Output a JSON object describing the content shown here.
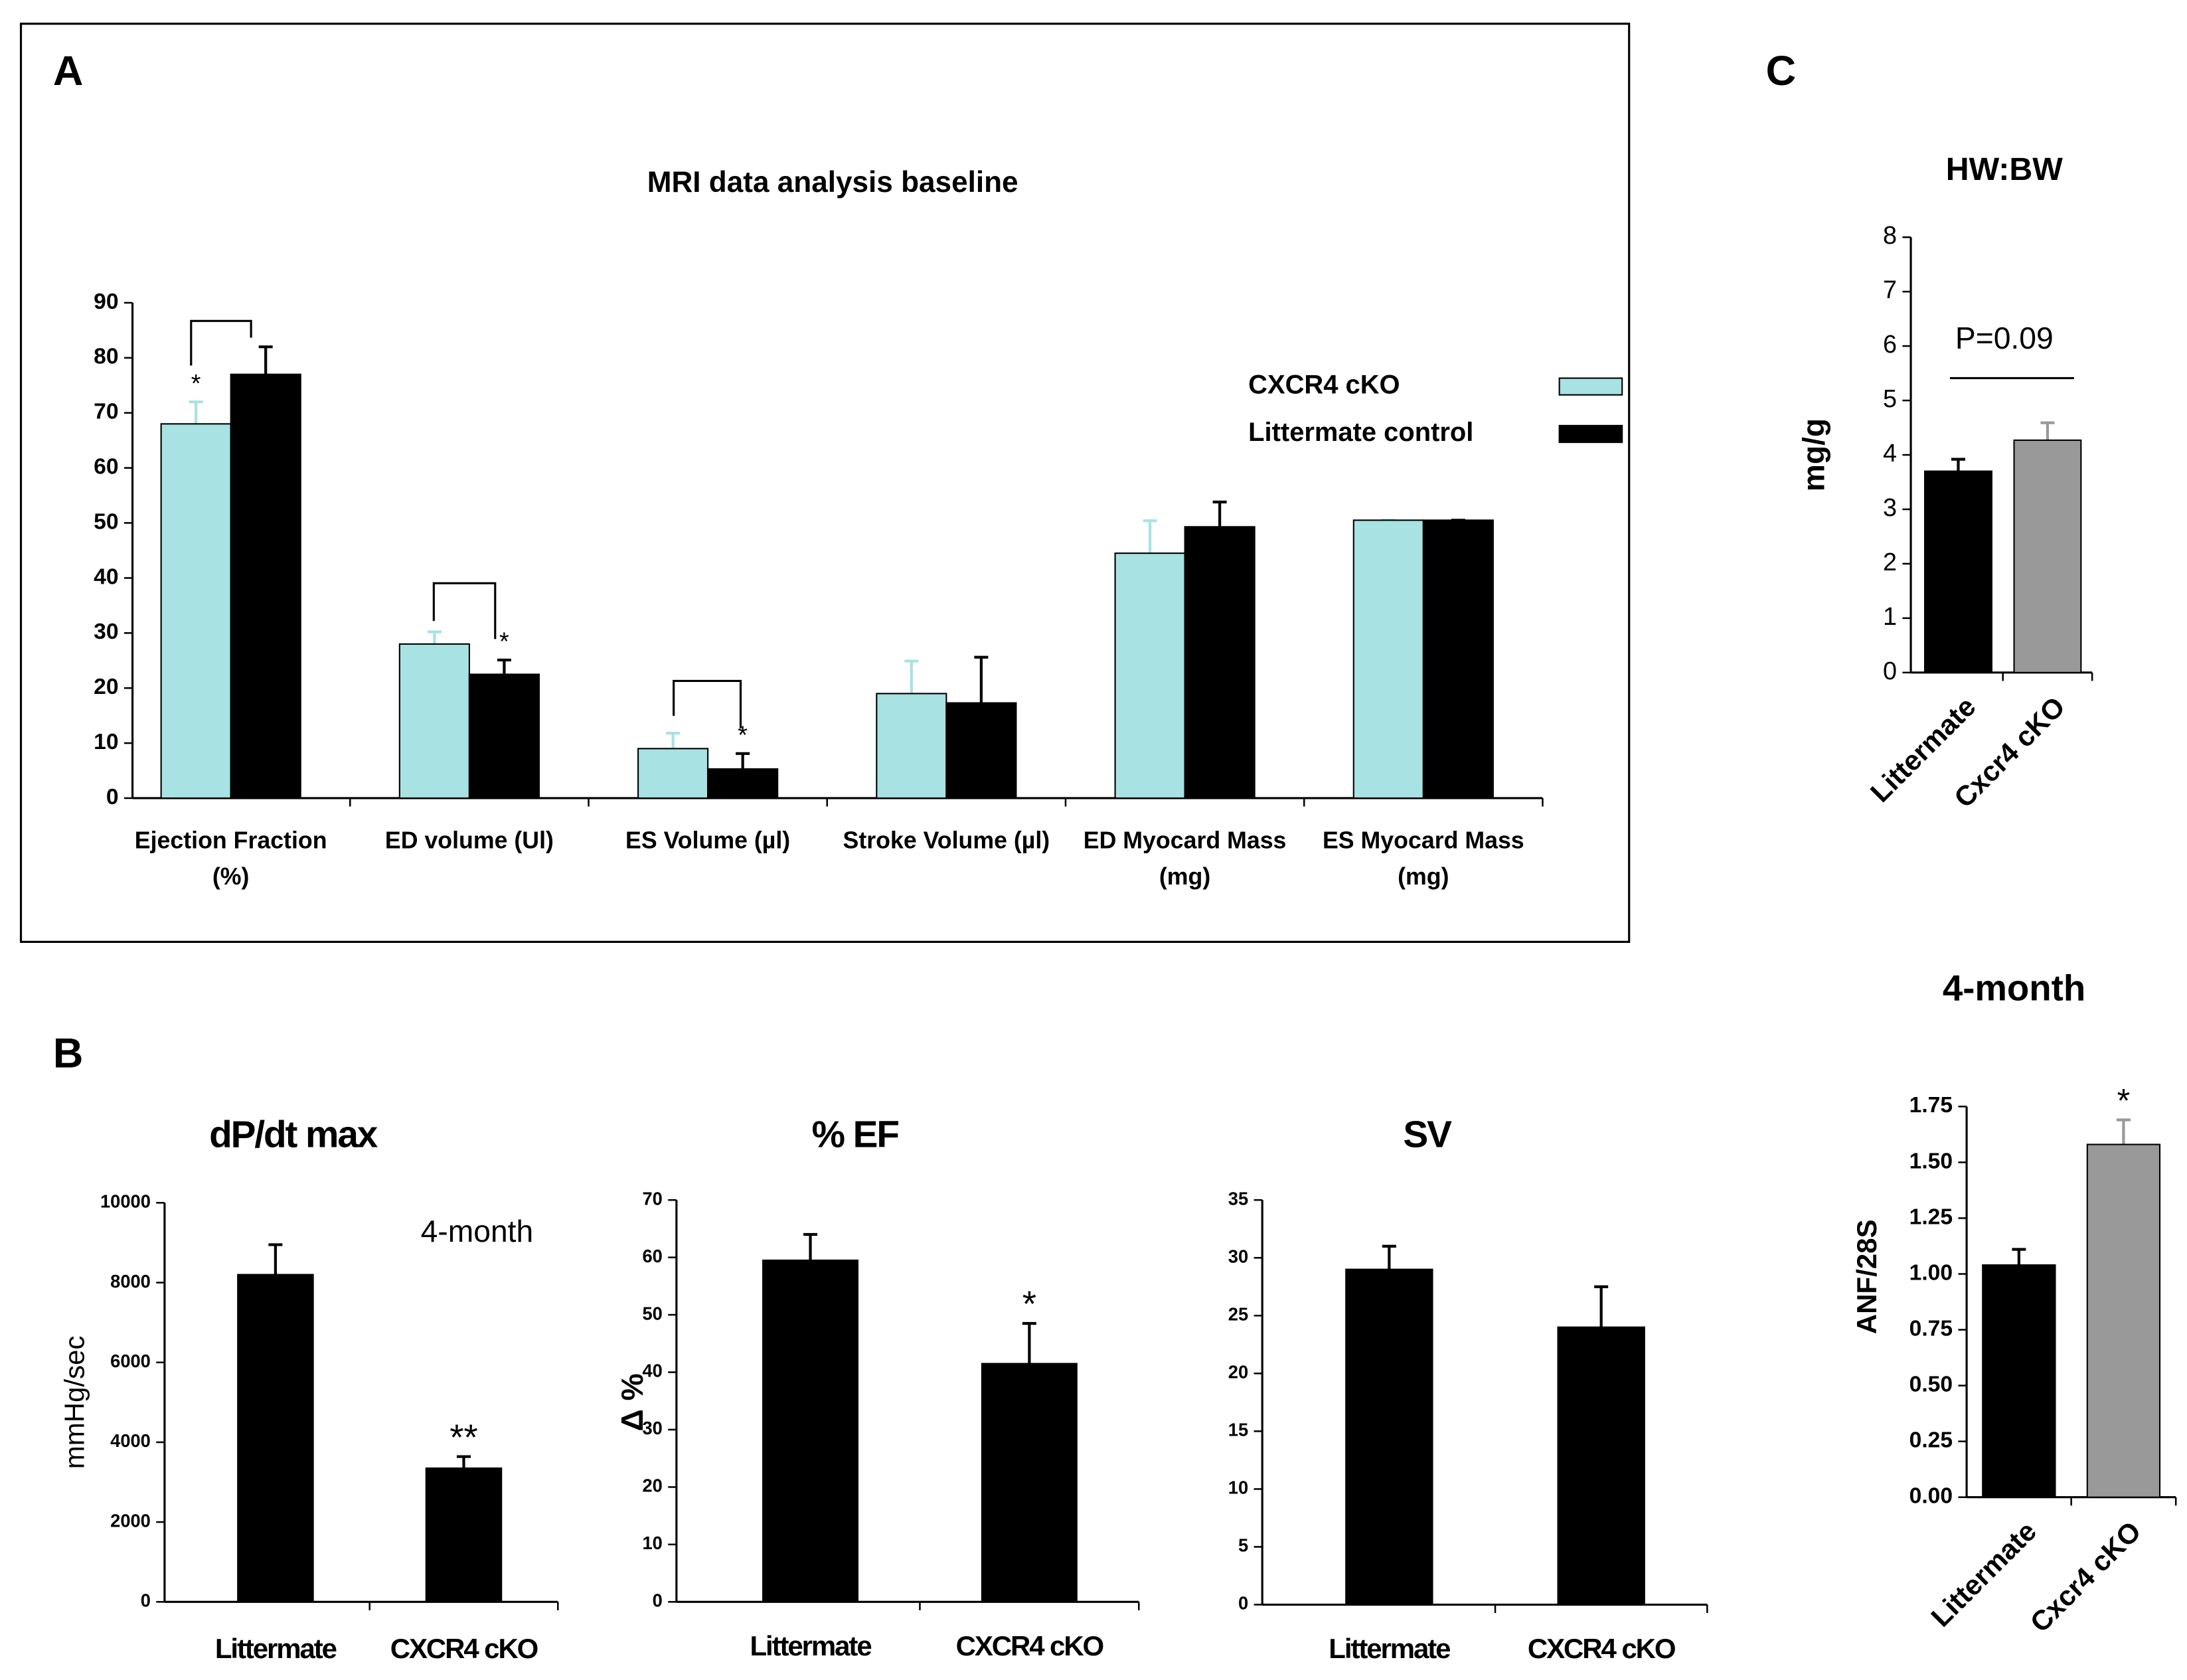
{
  "panel_labels": [
    "A",
    "B",
    "C"
  ],
  "chart_data": [
    {
      "type": "bar",
      "title": "MRI data analysis baseline",
      "categories": [
        "Ejection Fraction (%)",
        "ED volume (Ul)",
        "ES Volume (µl)",
        "Stroke Volume (µl)",
        "ED Myocard Mass (mg)",
        "ES Myocard Mass (mg)"
      ],
      "series": [
        {
          "name": "CXCR4 cKO",
          "color": "#a8e2e2",
          "values": [
            68,
            28,
            9,
            19,
            44.5,
            50.5
          ],
          "errors": [
            4,
            2.2,
            2.8,
            5.9,
            5.9,
            0
          ],
          "marks": [
            "*",
            null,
            null,
            null,
            null,
            null
          ]
        },
        {
          "name": "Littermate control",
          "color": "#000000",
          "values": [
            77,
            22.5,
            5.3,
            17.3,
            49.3,
            50.5
          ],
          "errors": [
            5,
            2.6,
            2.8,
            8.3,
            4.5,
            0
          ],
          "marks": [
            null,
            "*",
            "*",
            null,
            null,
            null
          ]
        }
      ],
      "ylim": [
        0,
        90
      ],
      "yticks": [
        0,
        10,
        20,
        30,
        40,
        50,
        60,
        70,
        80,
        90
      ],
      "legend": "right"
    },
    {
      "type": "bar",
      "title": "dP/dt max",
      "ylabel": "mmHg/sec",
      "note": "4-month",
      "categories": [
        "Littermate",
        "CXCR4 cKO"
      ],
      "values": [
        8200,
        3350
      ],
      "errors": [
        750,
        290
      ],
      "marks": [
        null,
        "**"
      ],
      "color": "#000000",
      "ylim": [
        0,
        10000
      ],
      "yticks": [
        0,
        2000,
        4000,
        6000,
        8000,
        10000
      ]
    },
    {
      "type": "bar",
      "title": "% EF",
      "ylabel": "Δ %",
      "categories": [
        "Littermate",
        "CXCR4 cKO"
      ],
      "values": [
        59.5,
        41.5
      ],
      "errors": [
        4.5,
        7
      ],
      "marks": [
        null,
        "*"
      ],
      "color": "#000000",
      "ylim": [
        0,
        70
      ],
      "yticks": [
        0,
        10,
        20,
        30,
        40,
        50,
        60,
        70
      ]
    },
    {
      "type": "bar",
      "title": "SV",
      "categories": [
        "Littermate",
        "CXCR4 cKO"
      ],
      "values": [
        29,
        24
      ],
      "errors": [
        2,
        3.5
      ],
      "marks": [
        null,
        null
      ],
      "color": "#000000",
      "ylim": [
        0,
        35
      ],
      "yticks": [
        0,
        5,
        10,
        15,
        20,
        25,
        30,
        35
      ]
    },
    {
      "type": "bar",
      "title": "HW:BW",
      "ylabel": "mg/g",
      "annotation": "P=0.09",
      "categories": [
        "Littermate",
        "Cxcr4 cKO"
      ],
      "values": [
        3.7,
        4.27
      ],
      "errors": [
        0.22,
        0.32
      ],
      "marks": [
        null,
        null
      ],
      "colors": [
        "#000000",
        "#999999"
      ],
      "ylim": [
        0,
        8
      ],
      "yticks": [
        0,
        1,
        2,
        3,
        4,
        5,
        6,
        7,
        8
      ]
    },
    {
      "type": "bar",
      "title": "4-month",
      "ylabel": "ANF/28S",
      "categories": [
        "Littermate",
        "Cxcr4 cKO"
      ],
      "values": [
        1.04,
        1.58
      ],
      "errors": [
        0.07,
        0.11
      ],
      "marks": [
        null,
        "*"
      ],
      "colors": [
        "#000000",
        "#999999"
      ],
      "ylim": [
        0,
        1.75
      ],
      "yticks": [
        {
          "value": 0,
          "label": "0.00"
        },
        {
          "value": 0.25,
          "label": "0.25"
        },
        {
          "value": 0.5,
          "label": "0.50"
        },
        {
          "value": 0.75,
          "label": "0.75"
        },
        {
          "value": 1,
          "label": "1.00"
        },
        {
          "value": 1.25,
          "label": "1.25"
        },
        {
          "value": 1.5,
          "label": "1.50"
        },
        {
          "value": 1.75,
          "label": "1.75"
        }
      ]
    }
  ]
}
